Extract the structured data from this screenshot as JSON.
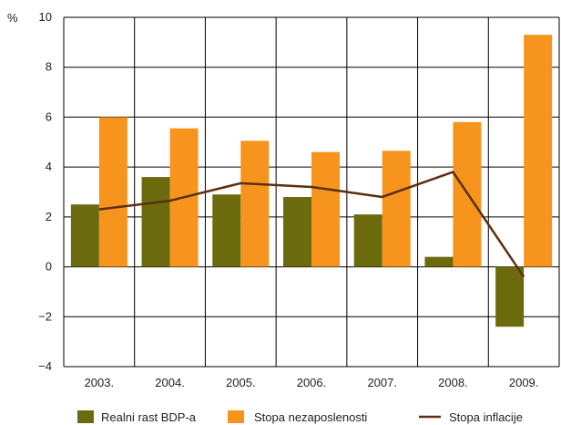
{
  "chart_data": {
    "type": "bar",
    "title": "",
    "xlabel": "",
    "ylabel": "%",
    "ylim": [
      -4,
      10
    ],
    "yticks": [
      10,
      8,
      6,
      4,
      2,
      0,
      -2,
      -4
    ],
    "ytick_labels": [
      "10",
      "8",
      "6",
      "4",
      "2",
      "0",
      "−2",
      "−4"
    ],
    "grid": true,
    "legend_position": "bottom",
    "categories": [
      "2003.",
      "2004.",
      "2005.",
      "2006.",
      "2007.",
      "2008.",
      "2009."
    ],
    "series": [
      {
        "name": "Realni rast BDP-a",
        "kind": "bar",
        "color": "#6b6b0e",
        "values": [
          2.5,
          3.6,
          2.9,
          2.8,
          2.1,
          0.4,
          -2.4
        ]
      },
      {
        "name": "Stopa nezaposlenosti",
        "kind": "bar",
        "color": "#f7941d",
        "values": [
          6.0,
          5.55,
          5.05,
          4.6,
          4.65,
          5.8,
          9.3
        ]
      },
      {
        "name": "Stopa inflacije",
        "kind": "line",
        "color": "#5c2e12",
        "values": [
          2.3,
          2.65,
          3.35,
          3.2,
          2.8,
          3.8,
          -0.4
        ]
      }
    ]
  }
}
